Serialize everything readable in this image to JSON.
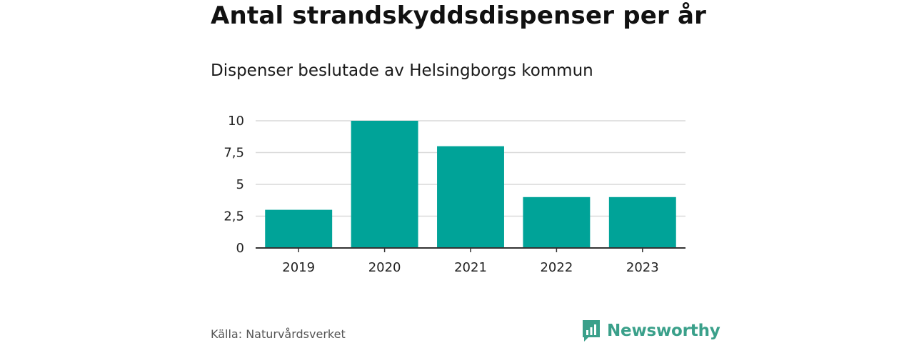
{
  "chart_data": {
    "type": "bar",
    "title": "Antal strandskyddsdispenser per år",
    "subtitle": "Dispenser beslutade av Helsingborgs kommun",
    "categories": [
      "2019",
      "2020",
      "2021",
      "2022",
      "2023"
    ],
    "values": [
      3,
      10,
      8,
      4,
      4
    ],
    "ylim": [
      0,
      10
    ],
    "yticks": [
      0,
      2.5,
      5,
      7.5,
      10
    ],
    "ytick_labels": [
      "0",
      "2,5",
      "5",
      "7,5",
      "10"
    ],
    "xlabel": "",
    "ylabel": "",
    "grid": true,
    "bar_color": "#00a398"
  },
  "source": "Källa: Naturvårdsverket",
  "brand": {
    "name": "Newsworthy",
    "color": "#3aa08a",
    "icon": "newsworthy-logo-icon"
  }
}
